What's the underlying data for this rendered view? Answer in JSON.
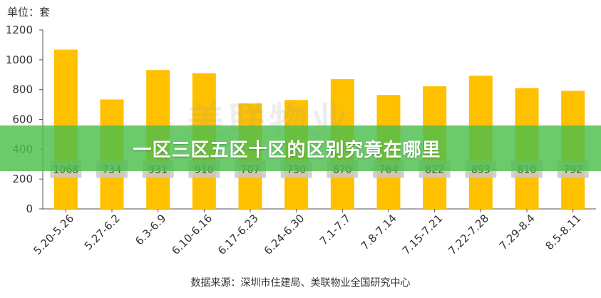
{
  "unit_text": "单位：套",
  "source_text": "数据来源：深圳市住建局、美联物业全国研究中心",
  "watermark_text": "美联物业",
  "banner": {
    "title": "一区三区五区十区的区别究竟在哪里"
  },
  "colors": {
    "bar": "#FFC000",
    "label_box": "#C9C9C9",
    "axis": "#555555",
    "banner": "#4CBE4C"
  },
  "chart_data": {
    "type": "bar",
    "title": "",
    "xlabel": "",
    "ylabel": "",
    "categories": [
      "5.20-5.26",
      "5.27-6.2",
      "6.3-6.9",
      "6.10-6.16",
      "6.17-6.23",
      "6.24-6.30",
      "7.1-7.7",
      "7.8-7.14",
      "7.15-7.21",
      "7.22-7.28",
      "7.29-8.4",
      "8.5-8.11"
    ],
    "values": [
      1068,
      734,
      931,
      910,
      707,
      730,
      870,
      764,
      822,
      893,
      810,
      792
    ],
    "data_labels": [
      "1068",
      "734",
      "931",
      "910",
      "707",
      "730",
      "870",
      "764",
      "822",
      "893",
      "810",
      "792"
    ],
    "ylim": [
      0,
      1200
    ],
    "yticks": [
      0,
      200,
      400,
      600,
      800,
      1000,
      1200
    ],
    "grid": false,
    "legend": "none"
  }
}
